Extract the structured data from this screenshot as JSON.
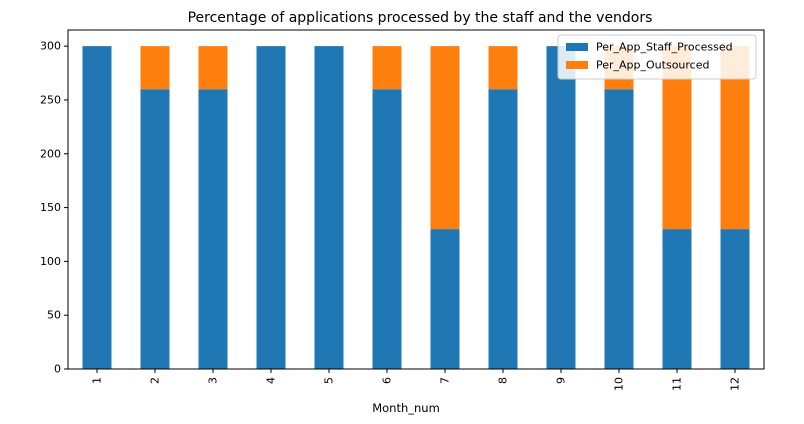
{
  "chart_data": {
    "type": "bar",
    "stacked": true,
    "title": "Percentage of applications processed by the staff and the vendors",
    "xlabel": "Month_num",
    "ylabel": "",
    "categories": [
      "1",
      "2",
      "3",
      "4",
      "5",
      "6",
      "7",
      "8",
      "9",
      "10",
      "11",
      "12"
    ],
    "series": [
      {
        "name": "Per_App_Staff_Processed",
        "color": "#1f77b4",
        "values": [
          300,
          260,
          260,
          300,
          300,
          260,
          130,
          260,
          300,
          260,
          130,
          130
        ]
      },
      {
        "name": "Per_App_Outsourced",
        "color": "#ff7f0e",
        "values": [
          0,
          40,
          40,
          0,
          0,
          40,
          170,
          40,
          0,
          40,
          170,
          170
        ]
      }
    ],
    "ylim": [
      0,
      315
    ],
    "yticks": [
      0,
      50,
      100,
      150,
      200,
      250,
      300
    ],
    "grid": false,
    "legend": "top-right",
    "x_tick_rotation": 90
  }
}
